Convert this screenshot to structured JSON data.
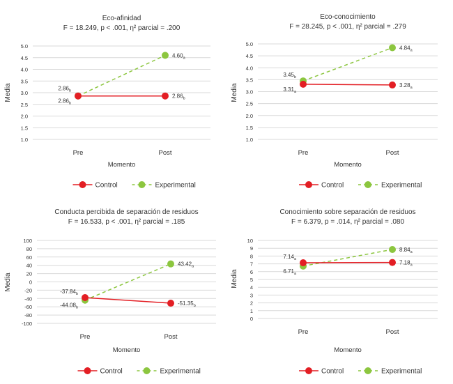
{
  "colors": {
    "control": "#e31e24",
    "experimental": "#8cc63f",
    "grid": "#d9d9d9"
  },
  "chart_data": [
    {
      "type": "line",
      "title": "Eco-afinidad",
      "subtitle": "F = 18.249, p < .001, η² parcial = .200",
      "xlabel": "Momento",
      "ylabel": "Media",
      "categories": [
        "Pre",
        "Post"
      ],
      "yticks": [
        "5.0",
        "4.5",
        "4.0",
        "3.5",
        "3.0",
        "2.5",
        "2.0",
        "1.5",
        "1.0"
      ],
      "ylim": [
        1,
        5
      ],
      "grid": true,
      "legend": "bottom",
      "series": [
        {
          "name": "Control",
          "values": [
            2.86,
            2.86
          ],
          "labels": [
            "2.86b",
            "2.86b"
          ]
        },
        {
          "name": "Experimental",
          "values": [
            2.86,
            4.6
          ],
          "labels": [
            "2.86b",
            "4.60a"
          ]
        }
      ]
    },
    {
      "type": "line",
      "title": "Eco-conocimiento",
      "subtitle": "F = 28.245, p < .001, η² parcial = .279",
      "xlabel": "Momento",
      "ylabel": "Media",
      "categories": [
        "Pre",
        "Post"
      ],
      "yticks": [
        "5.0",
        "4.5",
        "4.0",
        "3.5",
        "3.0",
        "2.5",
        "2.0",
        "1.5",
        "1.0"
      ],
      "ylim": [
        1,
        5
      ],
      "grid": true,
      "legend": "bottom",
      "series": [
        {
          "name": "Control",
          "values": [
            3.31,
            3.28
          ],
          "labels": [
            "3.31a",
            "3.28a"
          ]
        },
        {
          "name": "Experimental",
          "values": [
            3.45,
            4.84
          ],
          "labels": [
            "3.45b",
            "4.84a"
          ]
        }
      ]
    },
    {
      "type": "line",
      "title": "Conducta percibida de separación de residuos",
      "subtitle": "F = 16.533, p < .001, η² parcial = .185",
      "xlabel": "Momento",
      "ylabel": "Media",
      "categories": [
        "Pre",
        "Post"
      ],
      "yticks": [
        "100",
        "80",
        "60",
        "40",
        "20",
        "0",
        "-20",
        "-40",
        "-60",
        "-80",
        "-100"
      ],
      "ylim": [
        -100,
        100
      ],
      "grid": true,
      "legend": "bottom",
      "series": [
        {
          "name": "Control",
          "values": [
            -37.84,
            -51.35
          ],
          "labels": [
            "-37.84b",
            "-51.35b"
          ]
        },
        {
          "name": "Experimental",
          "values": [
            -44.08,
            43.42
          ],
          "labels": [
            "-44.08b",
            "43.42a"
          ]
        }
      ]
    },
    {
      "type": "line",
      "title": "Conocimiento sobre separación de residuos",
      "subtitle": "F = 6.379, p = .014, η² parcial = .080",
      "xlabel": "Momento",
      "ylabel": "Media",
      "categories": [
        "Pre",
        "Post"
      ],
      "yticks": [
        "10",
        "9",
        "8",
        "7",
        "6",
        "5",
        "4",
        "3",
        "2",
        "1",
        "0"
      ],
      "ylim": [
        0,
        10
      ],
      "grid": true,
      "legend": "bottom",
      "series": [
        {
          "name": "Control",
          "values": [
            7.14,
            7.18
          ],
          "labels": [
            "7.14a",
            "7.18a"
          ]
        },
        {
          "name": "Experimental",
          "values": [
            6.71,
            8.84
          ],
          "labels": [
            "6.71a",
            "8.84a"
          ]
        }
      ]
    }
  ]
}
